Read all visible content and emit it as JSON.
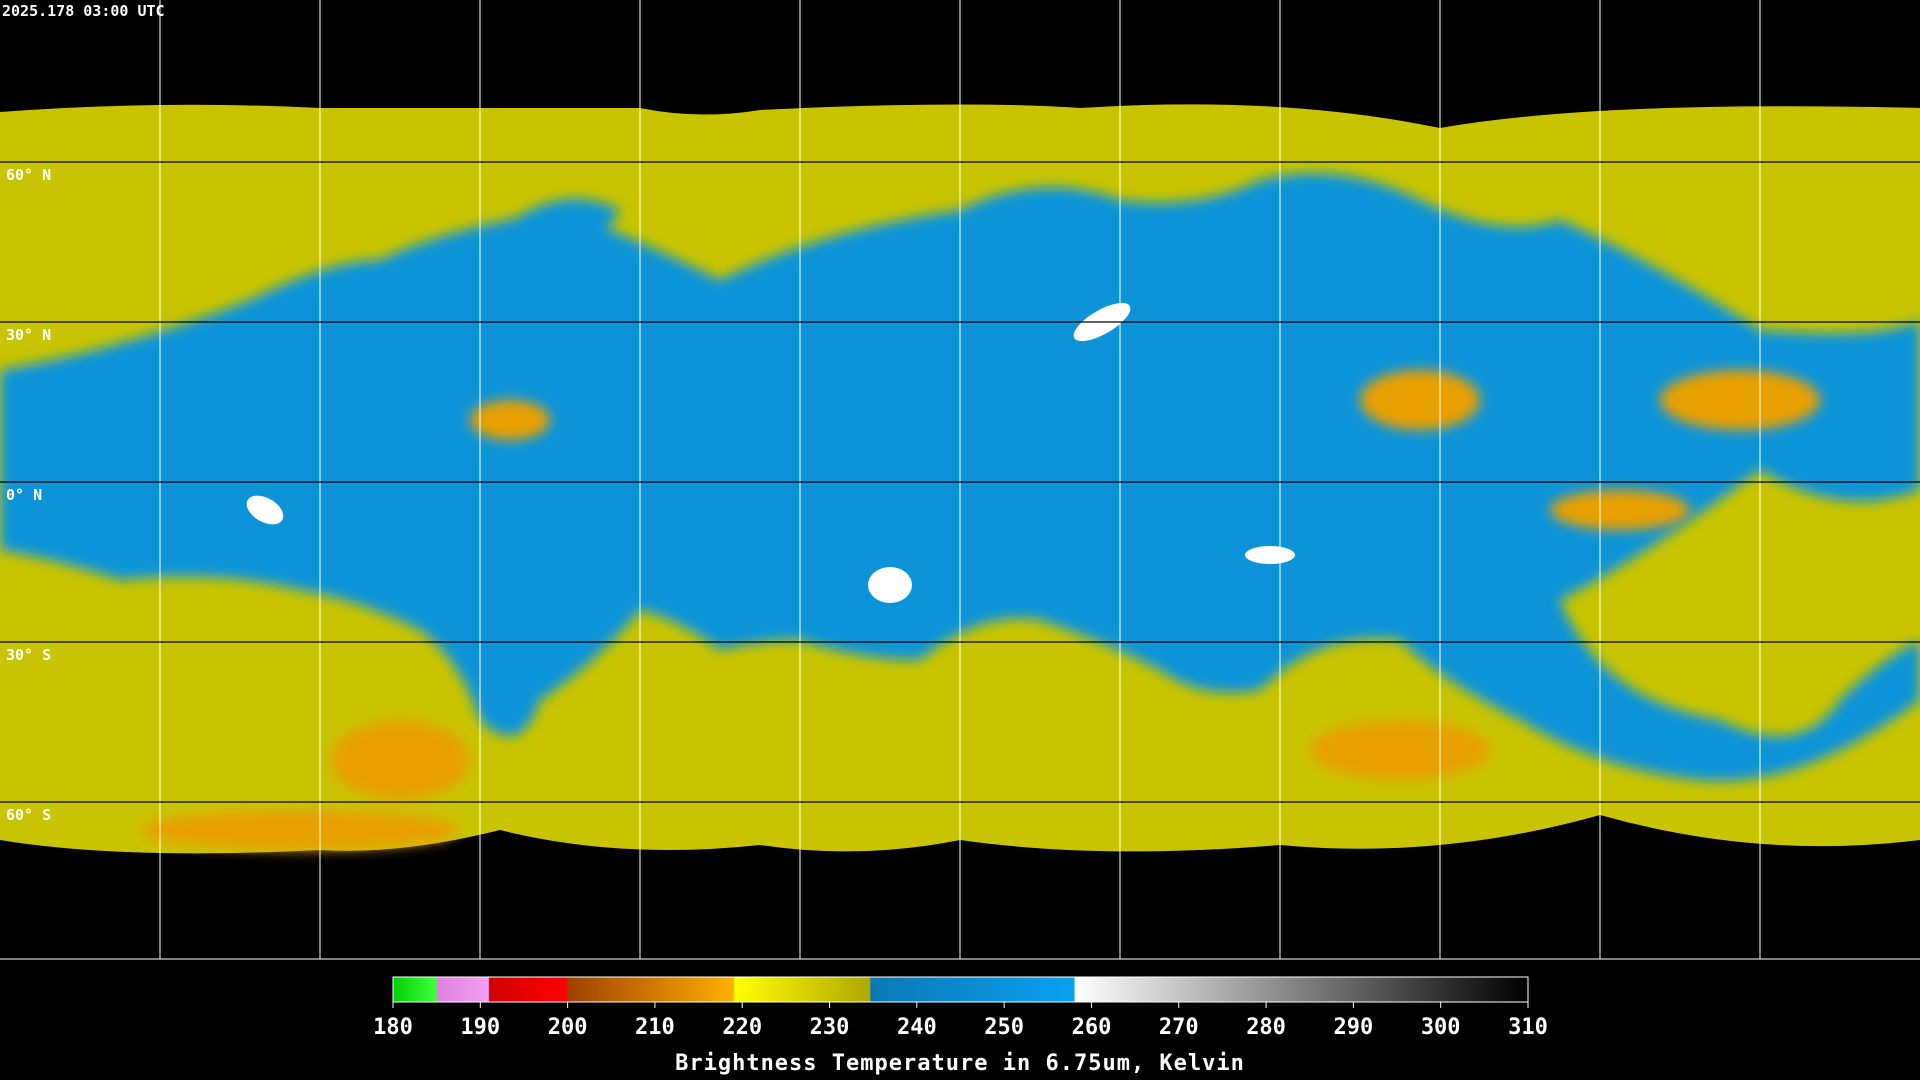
{
  "timestamp": "2025.178 03:00 UTC",
  "latitude_labels": [
    "60° N",
    "30° N",
    "0° N",
    "30° S",
    "60° S"
  ],
  "colorbar": {
    "label": "Brightness Temperature in 6.75um, Kelvin",
    "range": [
      180,
      310
    ],
    "ticks": [
      180,
      190,
      200,
      210,
      220,
      230,
      240,
      250,
      260,
      270,
      280,
      290,
      300,
      310
    ]
  }
}
